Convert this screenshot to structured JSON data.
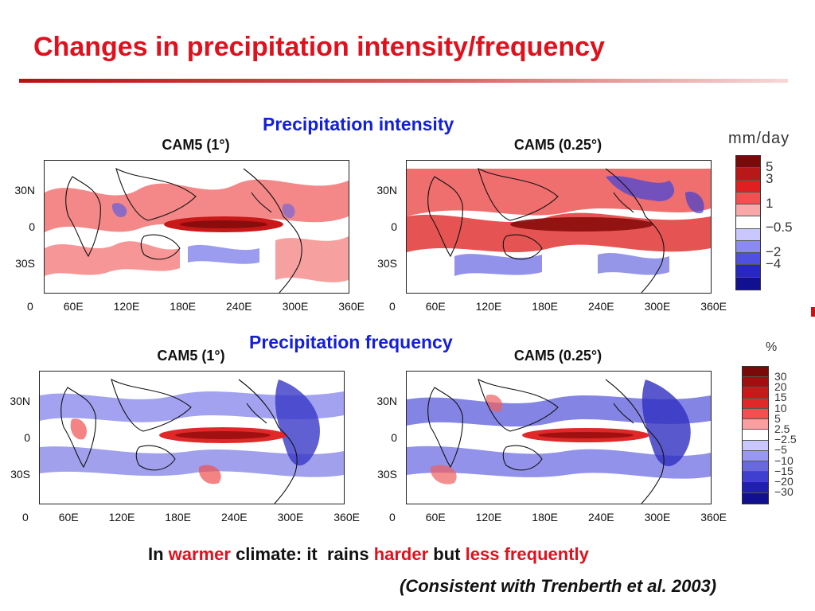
{
  "slide": {
    "title": "Changes in precipitation intensity/frequency"
  },
  "sections": {
    "intensity_title": "Precipitation intensity",
    "frequency_title": "Precipitation frequency"
  },
  "panels": [
    {
      "title": "CAM5 (1°)",
      "variable": "intensity"
    },
    {
      "title": "CAM5 (0.25°)",
      "variable": "intensity"
    },
    {
      "title": "CAM5 (1°)",
      "variable": "frequency"
    },
    {
      "title": "CAM5 (0.25°)",
      "variable": "frequency"
    }
  ],
  "axes": {
    "lat_labels": [
      "30N",
      "0",
      "30S"
    ],
    "lon_labels": [
      "0",
      "60E",
      "120E",
      "180E",
      "240E",
      "300E",
      "360E"
    ]
  },
  "colorbars": {
    "intensity": {
      "unit": "mm/day",
      "colors": [
        "#7a0a0a",
        "#b81818",
        "#e02020",
        "#f05050",
        "#f8a8a8",
        "#ffffff",
        "#c8c8ff",
        "#8a8af0",
        "#5050e0",
        "#2828c0",
        "#101090"
      ],
      "labels": [
        "5",
        "3",
        "1",
        "−0.5",
        "−2",
        "−4"
      ]
    },
    "frequency": {
      "unit": "%",
      "colors": [
        "#7a0a0a",
        "#a01010",
        "#c81818",
        "#e02828",
        "#f05050",
        "#f8a0a0",
        "#ffffff",
        "#c8c8ff",
        "#9898f0",
        "#6868e0",
        "#4040d0",
        "#2020b0",
        "#101090"
      ],
      "labels": [
        "30",
        "20",
        "15",
        "10",
        "5",
        "2.5",
        "−2.5",
        "−5",
        "−10",
        "−15",
        "−20",
        "−30"
      ]
    }
  },
  "footer": {
    "part1": "In ",
    "warmer": "warmer",
    "part2": " climate: it  rains ",
    "harder": "harder",
    "part3": " but ",
    "less_frequently": "less frequently",
    "citation": "(Consistent with Trenberth et al. 2003)"
  }
}
